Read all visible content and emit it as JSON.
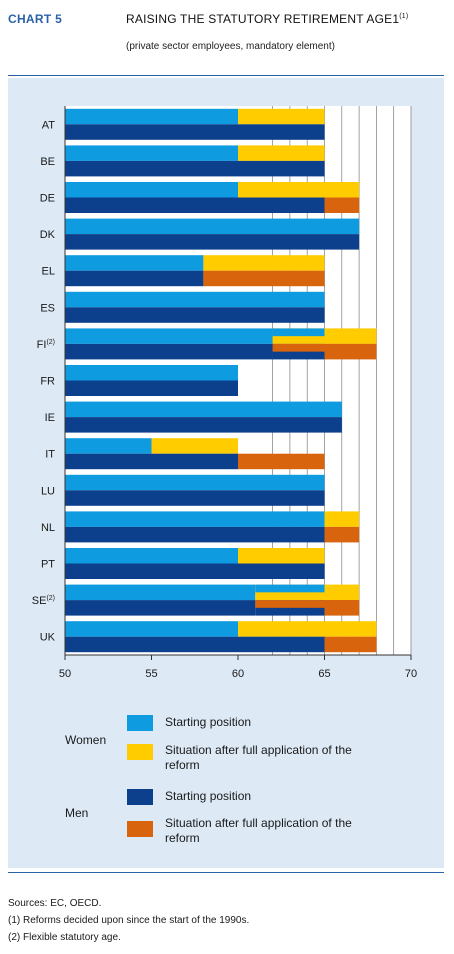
{
  "header": {
    "chart_label": "CHART 5",
    "title": "RAISING THE STATUTORY RETIREMENT AGE1",
    "title_sup": "(1)",
    "subtitle": "(private sector employees, mandatory element)"
  },
  "legend": {
    "women_label": "Women",
    "men_label": "Men",
    "women_start": "Starting position",
    "women_reform": "Situation after full application of the reform",
    "men_start": "Starting position",
    "men_reform": "Situation after full application of the reform"
  },
  "footer": {
    "sources": "Sources: EC, OECD.",
    "note1": "(1) Reforms decided upon since the start of the 1990s.",
    "note2": "(2) Flexible statutory age."
  },
  "colors": {
    "women_start": "#0f9be0",
    "women_reform": "#ffcc00",
    "men_start": "#0c3f8c",
    "men_reform": "#d9640e",
    "panel": "#dde9f5",
    "accent": "#2a62a7"
  },
  "chart_data": {
    "type": "bar",
    "orientation": "horizontal",
    "xlim": [
      50,
      70
    ],
    "xticks": [
      50,
      55,
      60,
      65,
      70
    ],
    "grid": "vertical lines every 1 year from 62 to 70",
    "categories": [
      {
        "label": "AT",
        "sup": ""
      },
      {
        "label": "BE",
        "sup": ""
      },
      {
        "label": "DE",
        "sup": ""
      },
      {
        "label": "DK",
        "sup": ""
      },
      {
        "label": "EL",
        "sup": ""
      },
      {
        "label": "ES",
        "sup": ""
      },
      {
        "label": "FI",
        "sup": "(2)"
      },
      {
        "label": "FR",
        "sup": ""
      },
      {
        "label": "IE",
        "sup": ""
      },
      {
        "label": "IT",
        "sup": ""
      },
      {
        "label": "LU",
        "sup": ""
      },
      {
        "label": "NL",
        "sup": ""
      },
      {
        "label": "PT",
        "sup": ""
      },
      {
        "label": "SE",
        "sup": "(2)"
      },
      {
        "label": "UK",
        "sup": ""
      }
    ],
    "series": [
      {
        "name": "Women – Starting position",
        "values": [
          60,
          60,
          60,
          67,
          58,
          65,
          62,
          60,
          66,
          55,
          65,
          65,
          60,
          61,
          60
        ]
      },
      {
        "name": "Women – Situation after full application of the reform",
        "values": [
          65,
          65,
          67,
          67,
          65,
          65,
          68,
          60,
          66,
          60,
          65,
          67,
          65,
          67,
          68
        ]
      },
      {
        "name": "Men – Starting position",
        "values": [
          65,
          65,
          65,
          67,
          58,
          65,
          65,
          60,
          66,
          60,
          65,
          65,
          65,
          65,
          65
        ]
      },
      {
        "name": "Men – Situation after full application of the reform",
        "values": [
          65,
          65,
          67,
          67,
          65,
          65,
          68,
          60,
          66,
          65,
          65,
          67,
          65,
          67,
          68
        ]
      }
    ],
    "notes": "FI and SE: starting position shown as a range (flexible statutory age), upper bound 65."
  }
}
